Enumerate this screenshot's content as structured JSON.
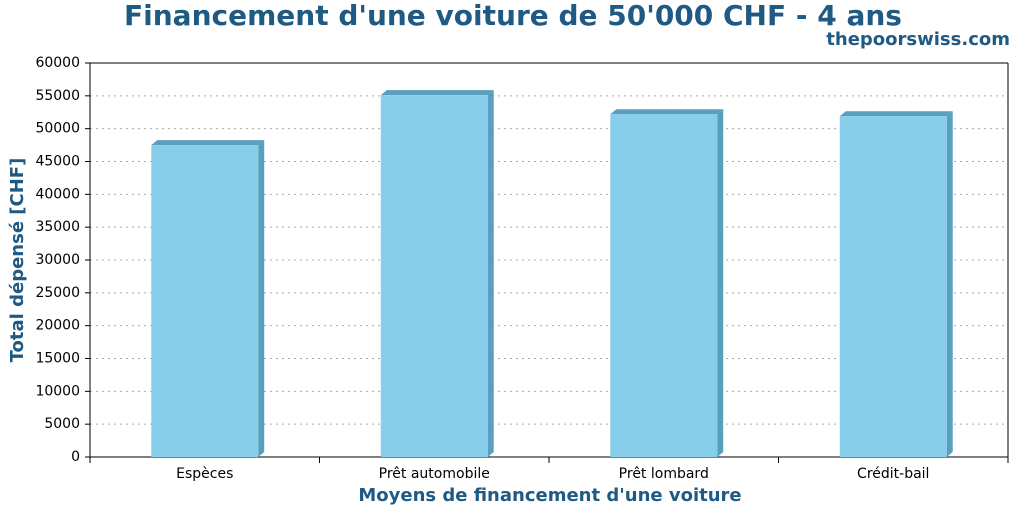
{
  "chart_data": {
    "type": "bar",
    "title": "Financement d'une voiture de 50'000 CHF - 4 ans",
    "subtitle": "thepoorswiss.com",
    "x_label": "Moyens de financement d'une voiture",
    "y_label": "Total dépensé [CHF]",
    "categories": [
      "Espèces",
      "Prêt automobile",
      "Prêt lombard",
      "Crédit-bail"
    ],
    "values": [
      47500,
      55100,
      52200,
      51900
    ],
    "color": "#87ceeb",
    "ylim": [
      0,
      60000
    ],
    "yticks": [
      0,
      5000,
      10000,
      15000,
      20000,
      25000,
      30000,
      35000,
      40000,
      45000,
      50000,
      55000,
      60000
    ],
    "grid": true
  }
}
